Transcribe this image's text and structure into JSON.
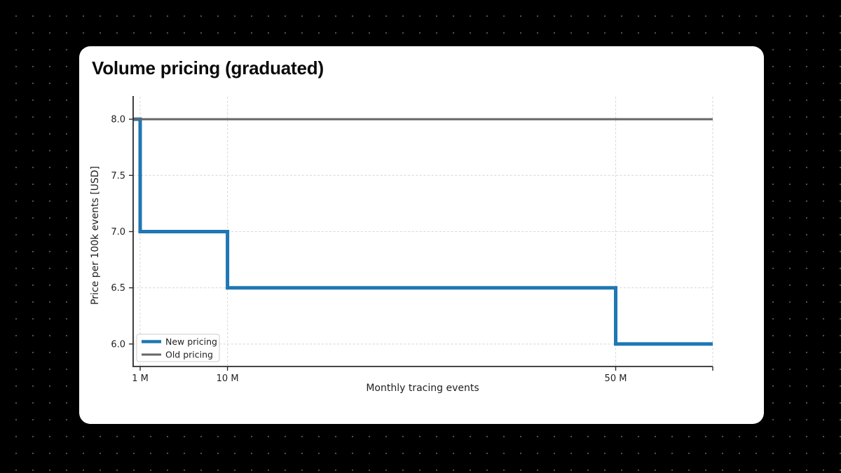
{
  "page": {
    "background_color": "#000000",
    "dot_pattern_color": "#4f4f4f",
    "card_color": "#ffffff"
  },
  "chart_data": {
    "type": "line",
    "subtype": "step",
    "title": "Volume pricing (graduated)",
    "xlabel": "Monthly tracing events",
    "ylabel": "Price per 100k events [USD]",
    "x_unit": "millions of events",
    "x_scale": "linear",
    "xlim": [
      0.28,
      60
    ],
    "ylim": [
      5.8,
      8.2
    ],
    "grid": true,
    "legend_position": "lower left",
    "xticks": [
      {
        "value": 1,
        "label": "1 M"
      },
      {
        "value": 10,
        "label": "10 M"
      },
      {
        "value": 50,
        "label": "50 M"
      },
      {
        "value": 60,
        "label": ""
      }
    ],
    "yticks": [
      {
        "value": 6.0,
        "label": "6.0"
      },
      {
        "value": 6.5,
        "label": "6.5"
      },
      {
        "value": 7.0,
        "label": "7.0"
      },
      {
        "value": 7.5,
        "label": "7.5"
      },
      {
        "value": 8.0,
        "label": "8.0"
      }
    ],
    "series": [
      {
        "name": "New pricing",
        "color": "#1f77b4",
        "line_width": 5,
        "points": [
          [
            0.28,
            8.0
          ],
          [
            1,
            8.0
          ],
          [
            1,
            7.0
          ],
          [
            10,
            7.0
          ],
          [
            10,
            6.5
          ],
          [
            50,
            6.5
          ],
          [
            50,
            6.0
          ],
          [
            60,
            6.0
          ]
        ]
      },
      {
        "name": "Old pricing",
        "color": "#666666",
        "line_width": 3,
        "points": [
          [
            0.28,
            8.0
          ],
          [
            60,
            8.0
          ]
        ]
      }
    ],
    "style": {
      "grid_color": "#d9d9d9",
      "spine_color": "#2b2b2b",
      "tick_label_color": "#222222",
      "legend_border_color": "#cccccc",
      "legend_background": "#ffffff"
    }
  }
}
